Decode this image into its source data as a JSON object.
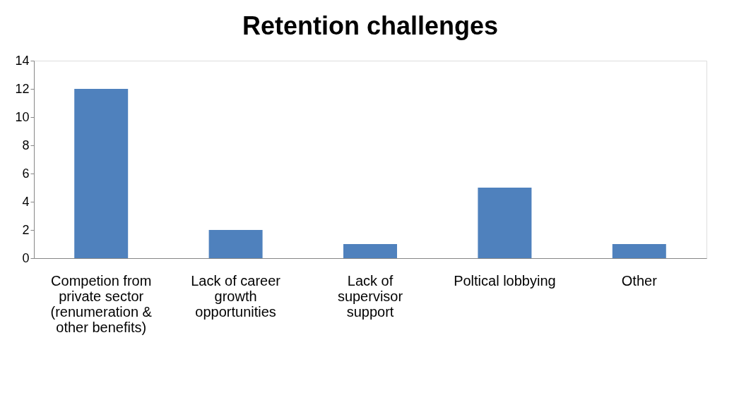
{
  "chart_data": {
    "type": "bar",
    "title": "Retention challenges",
    "categories": [
      "Competion from private sector (renumeration & other benefits)",
      "Lack of career growth opportunities",
      "Lack of supervisor support",
      "Poltical lobbying",
      "Other"
    ],
    "values": [
      12,
      2,
      1,
      5,
      1
    ],
    "color": "#4f81bd",
    "ylim": [
      0,
      14
    ],
    "yticks": [
      0,
      2,
      4,
      6,
      8,
      10,
      12,
      14
    ],
    "grid": false
  }
}
